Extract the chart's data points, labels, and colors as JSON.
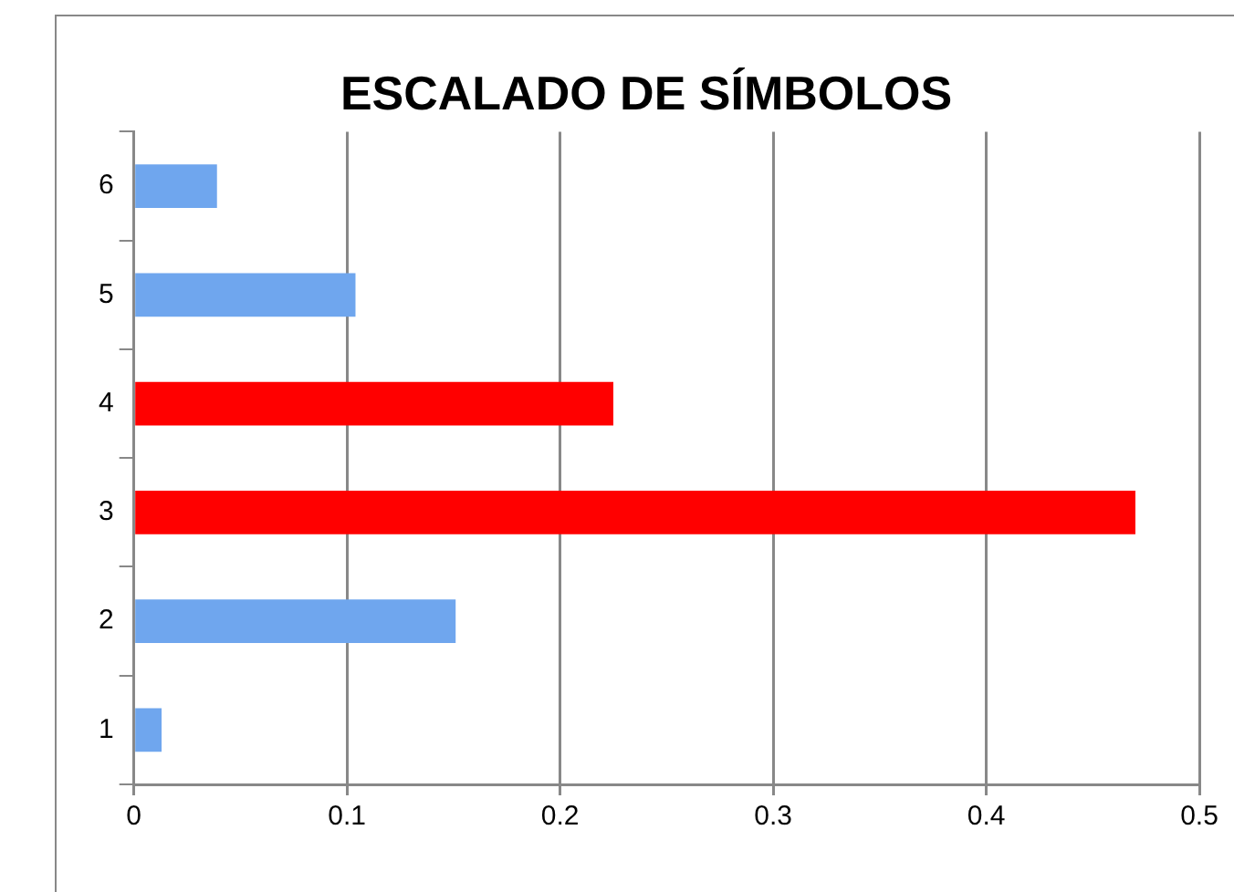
{
  "chart_data": {
    "type": "bar",
    "orientation": "horizontal",
    "title": "ESCALADO DE SÍMBOLOS",
    "categories": [
      "6",
      "5",
      "4",
      "3",
      "2",
      "1"
    ],
    "values": [
      0.039,
      0.104,
      0.225,
      0.47,
      0.151,
      0.013
    ],
    "colors": [
      "#6fa6ee",
      "#6fa6ee",
      "#ff0000",
      "#ff0000",
      "#6fa6ee",
      "#6fa6ee"
    ],
    "xlim": [
      0,
      0.5
    ],
    "xticks": [
      0,
      0.1,
      0.2,
      0.3,
      0.4,
      0.5
    ],
    "grid": "x",
    "legend": false
  }
}
